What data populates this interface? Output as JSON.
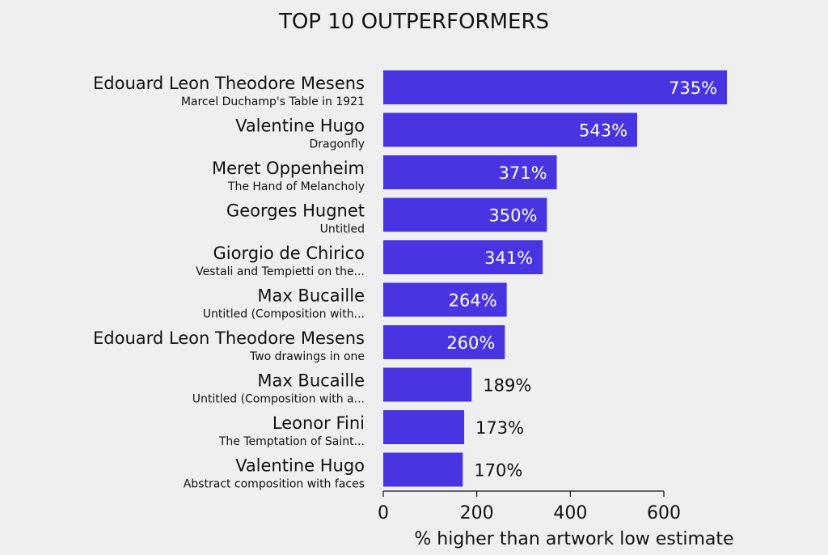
{
  "chart_data": {
    "type": "bar",
    "orientation": "horizontal",
    "title": "TOP 10 OUTPERFORMERS",
    "xlabel": "% higher than artwork low estimate",
    "ylabel": "",
    "xlim": [
      0,
      600
    ],
    "xticks": [
      0,
      200,
      400,
      600
    ],
    "grid": false,
    "bar_color": "#4834e0",
    "background_color": "#efefef",
    "categories": [
      {
        "artist": "Edouard Leon Theodore Mesens",
        "artwork": "Marcel Duchamp's Table in 1921"
      },
      {
        "artist": "Valentine Hugo",
        "artwork": "Dragonfly"
      },
      {
        "artist": "Meret Oppenheim",
        "artwork": "The Hand of Melancholy"
      },
      {
        "artist": "Georges Hugnet",
        "artwork": "Untitled"
      },
      {
        "artist": "Giorgio de Chirico",
        "artwork": "Vestali and Tempietti on the..."
      },
      {
        "artist": "Max Bucaille",
        "artwork": "Untitled (Composition with..."
      },
      {
        "artist": "Edouard Leon Theodore Mesens",
        "artwork": "Two drawings in one"
      },
      {
        "artist": "Max Bucaille",
        "artwork": "Untitled (Composition with a..."
      },
      {
        "artist": "Leonor Fini",
        "artwork": "The Temptation of Saint..."
      },
      {
        "artist": "Valentine Hugo",
        "artwork": "Abstract composition with faces"
      }
    ],
    "values": [
      735,
      543,
      371,
      350,
      341,
      264,
      260,
      189,
      173,
      170
    ],
    "value_labels": [
      "735%",
      "543%",
      "371%",
      "350%",
      "341%",
      "264%",
      "260%",
      "189%",
      "173%",
      "170%"
    ]
  }
}
